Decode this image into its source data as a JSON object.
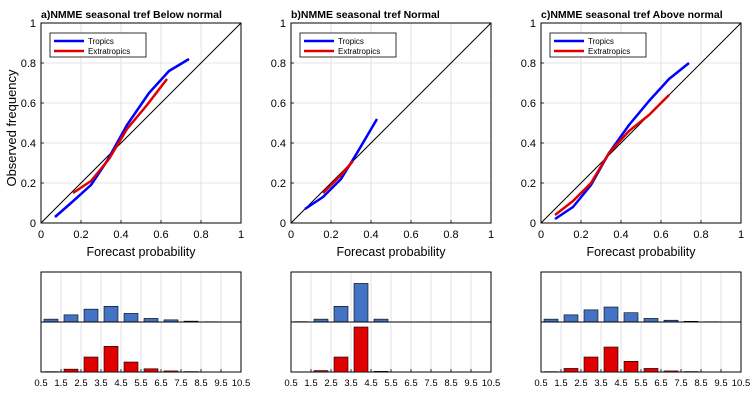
{
  "figure": {
    "shared_ylabel": "Observed frequency",
    "hist_xticks": [
      "0.5",
      "1.5",
      "2.5",
      "3.5",
      "4.5",
      "5.5",
      "6.5",
      "7.5",
      "8.5",
      "9.5",
      "10.5"
    ],
    "colors": {
      "tropics": "#0000ff",
      "extratropics": "#e00000",
      "hist_tropics": "#4472c4",
      "hist_extratropics": "#e00000",
      "diagonal": "#000000",
      "grid": "#dcdcdc"
    }
  },
  "chart_data": [
    {
      "type": "line",
      "title": "a)NMME seasonal tref Below normal",
      "xlabel": "Forecast probability",
      "ylabel": "Observed frequency",
      "xlim": [
        0,
        1
      ],
      "ylim": [
        0,
        1
      ],
      "xticks": [
        "0",
        "0.2",
        "0.4",
        "0.6",
        "0.8",
        "1"
      ],
      "yticks": [
        "0",
        "0.2",
        "0.4",
        "0.6",
        "0.8",
        "1"
      ],
      "grid": true,
      "legend_position": "top-left",
      "reference_line": "diagonal y = x",
      "series": [
        {
          "name": "Tropics",
          "color": "#0000ff",
          "x": [
            0.07,
            0.15,
            0.25,
            0.33,
            0.43,
            0.54,
            0.64,
            0.74
          ],
          "y": [
            0.03,
            0.1,
            0.19,
            0.31,
            0.49,
            0.65,
            0.76,
            0.82
          ]
        },
        {
          "name": "Extratropics",
          "color": "#e00000",
          "x": [
            0.16,
            0.25,
            0.34,
            0.43,
            0.53,
            0.63
          ],
          "y": [
            0.15,
            0.21,
            0.32,
            0.47,
            0.59,
            0.72
          ]
        }
      ]
    },
    {
      "type": "line",
      "title": "b)NMME seasonal tref Normal",
      "xlabel": "Forecast probability",
      "ylabel": "",
      "xlim": [
        0,
        1
      ],
      "ylim": [
        0,
        1
      ],
      "xticks": [
        "0",
        "0.2",
        "0.4",
        "0.6",
        "0.8",
        "1"
      ],
      "yticks": [
        "0",
        "0.2",
        "0.4",
        "0.6",
        "0.8",
        "1"
      ],
      "grid": true,
      "legend_position": "top-left",
      "reference_line": "diagonal y = x",
      "series": [
        {
          "name": "Tropics",
          "color": "#0000ff",
          "x": [
            0.07,
            0.16,
            0.25,
            0.33,
            0.43
          ],
          "y": [
            0.07,
            0.13,
            0.22,
            0.35,
            0.52
          ]
        },
        {
          "name": "Extratropics",
          "color": "#e00000",
          "x": [
            0.16,
            0.25,
            0.31
          ],
          "y": [
            0.15,
            0.24,
            0.31
          ]
        }
      ]
    },
    {
      "type": "line",
      "title": "c)NMME seasonal tref Above normal",
      "xlabel": "Forecast probability",
      "ylabel": "",
      "xlim": [
        0,
        1
      ],
      "ylim": [
        0,
        1
      ],
      "xticks": [
        "0",
        "0.2",
        "0.4",
        "0.6",
        "0.8",
        "1"
      ],
      "yticks": [
        "0",
        "0.2",
        "0.4",
        "0.6",
        "0.8",
        "1"
      ],
      "grid": true,
      "legend_position": "top-left",
      "reference_line": "diagonal y = x",
      "series": [
        {
          "name": "Tropics",
          "color": "#0000ff",
          "x": [
            0.07,
            0.16,
            0.25,
            0.34,
            0.44,
            0.54,
            0.64,
            0.74
          ],
          "y": [
            0.02,
            0.08,
            0.19,
            0.35,
            0.49,
            0.61,
            0.72,
            0.8
          ]
        },
        {
          "name": "Extratropics",
          "color": "#e00000",
          "x": [
            0.07,
            0.16,
            0.25,
            0.34,
            0.44,
            0.54,
            0.64
          ],
          "y": [
            0.04,
            0.11,
            0.2,
            0.35,
            0.46,
            0.54,
            0.64
          ]
        }
      ]
    },
    {
      "type": "bar",
      "panel": "a",
      "series_group": "Tropics",
      "categories": [
        1,
        2,
        3,
        4,
        5,
        6,
        7,
        8,
        9,
        10
      ],
      "values": [
        0.04,
        0.1,
        0.18,
        0.22,
        0.12,
        0.05,
        0.03,
        0.012,
        0.004,
        0.002
      ],
      "ylim": [
        0,
        0.7
      ]
    },
    {
      "type": "bar",
      "panel": "a",
      "series_group": "Extratropics",
      "categories": [
        1,
        2,
        3,
        4,
        5,
        6,
        7,
        8,
        9,
        10
      ],
      "values": [
        0.005,
        0.04,
        0.21,
        0.36,
        0.14,
        0.045,
        0.015,
        0.006,
        0.002,
        0.001
      ],
      "ylim": [
        0,
        0.7
      ]
    },
    {
      "type": "bar",
      "panel": "b",
      "series_group": "Tropics",
      "categories": [
        1,
        2,
        3,
        4,
        5,
        6,
        7,
        8,
        9,
        10
      ],
      "values": [
        0.005,
        0.04,
        0.22,
        0.54,
        0.04,
        0,
        0,
        0,
        0,
        0
      ],
      "ylim": [
        0,
        0.7
      ]
    },
    {
      "type": "bar",
      "panel": "b",
      "series_group": "Extratropics",
      "categories": [
        1,
        2,
        3,
        4,
        5,
        6,
        7,
        8,
        9,
        10
      ],
      "values": [
        0.003,
        0.02,
        0.21,
        0.63,
        0.01,
        0,
        0,
        0,
        0,
        0
      ],
      "ylim": [
        0,
        0.7
      ]
    },
    {
      "type": "bar",
      "panel": "c",
      "series_group": "Tropics",
      "categories": [
        1,
        2,
        3,
        4,
        5,
        6,
        7,
        8,
        9,
        10
      ],
      "values": [
        0.04,
        0.1,
        0.17,
        0.21,
        0.13,
        0.05,
        0.025,
        0.01,
        0.004,
        0.002
      ],
      "ylim": [
        0,
        0.7
      ]
    },
    {
      "type": "bar",
      "panel": "c",
      "series_group": "Extratropics",
      "categories": [
        1,
        2,
        3,
        4,
        5,
        6,
        7,
        8,
        9,
        10
      ],
      "values": [
        0.005,
        0.05,
        0.21,
        0.35,
        0.15,
        0.05,
        0.015,
        0.006,
        0.002,
        0.001
      ],
      "ylim": [
        0,
        0.7
      ]
    }
  ]
}
